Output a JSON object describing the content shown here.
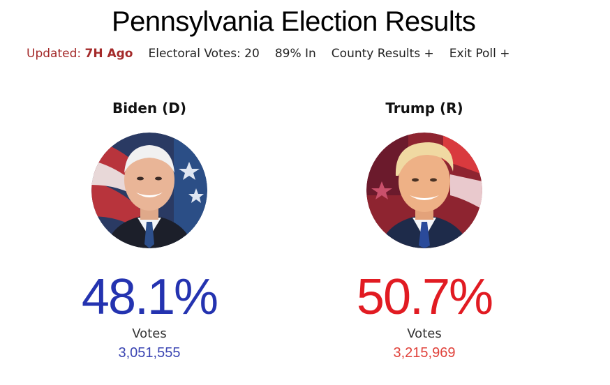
{
  "title": "Pennsylvania Election Results",
  "meta": {
    "updated_prefix": "Updated:",
    "updated_value": "7H Ago",
    "electoral_votes": "Electoral Votes: 20",
    "reporting": "89% In",
    "county_results": "County Results +",
    "exit_poll": "Exit Poll +"
  },
  "candidates": [
    {
      "name": "Biden (D)",
      "percent": "48.1%",
      "votes_label": "Votes",
      "votes": "3,051,555",
      "color": "#2433b0"
    },
    {
      "name": "Trump (R)",
      "percent": "50.7%",
      "votes_label": "Votes",
      "votes": "3,215,969",
      "color": "#e11b22"
    }
  ],
  "colors": {
    "updated": "#a42a2a",
    "dem": "#2433b0",
    "rep": "#e11b22"
  }
}
